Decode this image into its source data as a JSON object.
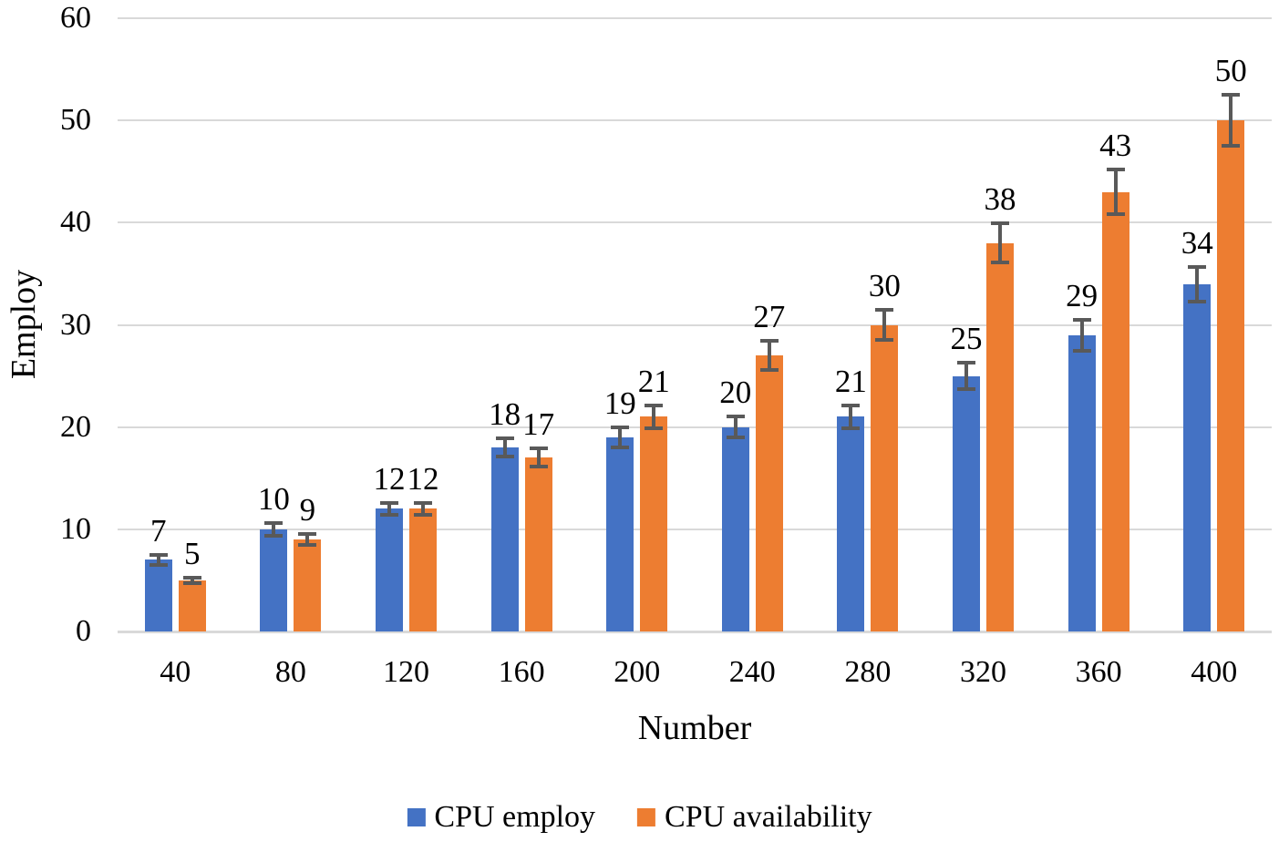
{
  "chart_data": {
    "type": "bar",
    "title": "",
    "xlabel": "Number",
    "ylabel": "Employ",
    "categories": [
      "40",
      "80",
      "120",
      "160",
      "200",
      "240",
      "280",
      "320",
      "360",
      "400"
    ],
    "series": [
      {
        "name": "CPU employ",
        "color": "#4472C4",
        "values": [
          7,
          10,
          12,
          18,
          19,
          20,
          21,
          25,
          29,
          34
        ],
        "errors": [
          0.5,
          0.6,
          0.6,
          0.9,
          1.0,
          1.0,
          1.1,
          1.3,
          1.5,
          1.7
        ]
      },
      {
        "name": "CPU availability",
        "color": "#ED7D31",
        "values": [
          5,
          9,
          12,
          17,
          21,
          27,
          30,
          38,
          43,
          50
        ],
        "errors": [
          0.3,
          0.5,
          0.6,
          0.9,
          1.1,
          1.4,
          1.5,
          1.9,
          2.2,
          2.5
        ]
      }
    ],
    "data_labels": [
      [
        "7",
        "10",
        "12",
        "18",
        "19",
        "20",
        "21",
        "25",
        "29",
        "34"
      ],
      [
        "5",
        "9",
        "12",
        "17",
        "21",
        "27",
        "30",
        "38",
        "43",
        "50"
      ]
    ],
    "ylim": [
      0,
      60
    ],
    "yticks": [
      "0",
      "10",
      "20",
      "30",
      "40",
      "50",
      "60"
    ],
    "grid": "horizontal gridlines on",
    "legend_position": "bottom center",
    "colors": {
      "gridline": "#D9D9D9",
      "error_bar": "#595959",
      "text": "#000000",
      "background": "#FFFFFF"
    }
  }
}
